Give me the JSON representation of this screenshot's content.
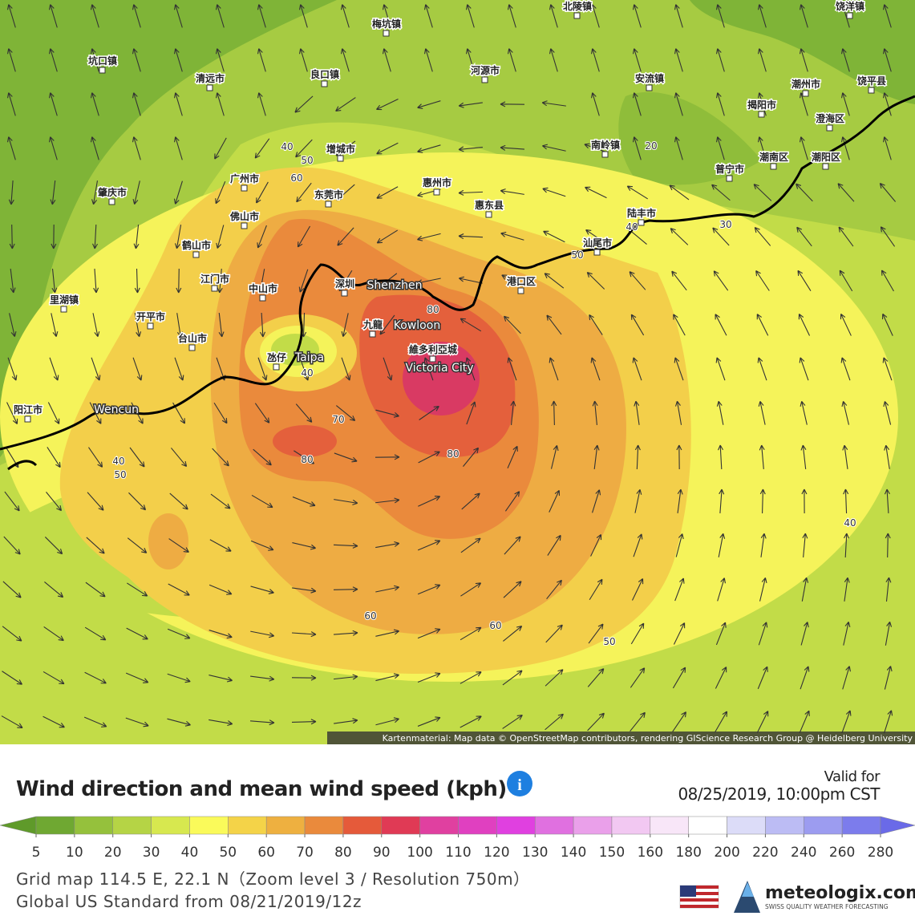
{
  "map": {
    "places": [
      "北陵镇",
      "饶洋镇",
      "梅坑镇",
      "坑口镇",
      "清远市",
      "良口镇",
      "河源市",
      "安流镇",
      "潮州市",
      "饶平县",
      "揭阳市",
      "澄海区",
      "南岭镇",
      "潮南区",
      "潮阳区",
      "普宁市",
      "增城市",
      "广州市",
      "东莞市",
      "惠州市",
      "肇庆市",
      "佛山市",
      "惠东县",
      "陆丰市",
      "鹤山市",
      "汕尾市",
      "江门市",
      "中山市",
      "深圳",
      "Shenzhen",
      "港口区",
      "里湖镇",
      "开平市",
      "九龍",
      "Kowloon",
      "台山市",
      "維多利亞城",
      "Victoria City",
      "氹仔",
      "Taipa",
      "阳江市",
      "Wencun"
    ],
    "contours": [
      40,
      50,
      60,
      20,
      30,
      40,
      50,
      80,
      40,
      70,
      80,
      80,
      40,
      50,
      40,
      60,
      60,
      50
    ],
    "attribution": "Kartenmaterial: Map data © OpenStreetMap contributors, rendering GIScience Research Group @ Heidelberg University"
  },
  "legend": {
    "title": "Wind direction and mean wind speed (kph)",
    "valid_label": "Valid for",
    "valid_time": "08/25/2019, 10:00pm CST",
    "ticks": [
      5,
      10,
      20,
      30,
      40,
      50,
      60,
      70,
      80,
      90,
      100,
      110,
      120,
      130,
      140,
      150,
      160,
      180,
      200,
      220,
      240,
      260,
      280
    ],
    "colors": [
      "#6fa832",
      "#95c13c",
      "#b5d445",
      "#d7e84f",
      "#fafa5a",
      "#f4d348",
      "#eeb040",
      "#ea8a3c",
      "#e55a3a",
      "#e03a55",
      "#e040a0",
      "#e040c0",
      "#e040e0",
      "#e070e0",
      "#eaa0ea",
      "#f2c8f2",
      "#f8e6f8",
      "#ffffff",
      "#dcdcf8",
      "#bcbcf4",
      "#9c9cf0",
      "#7c7cec"
    ]
  },
  "footer": {
    "grid": "Grid map 114.5 E, 22.1 N（Zoom level 3 / Resolution 750m）",
    "model": "Global US Standard from 08/21/2019/12z",
    "brand": "meteologix.com",
    "tagline": "SWISS QUALITY WEATHER FORECASTING"
  }
}
